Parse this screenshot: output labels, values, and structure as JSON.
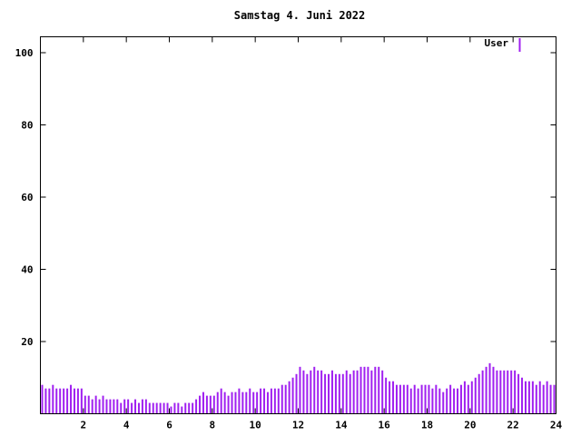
{
  "chart_data": {
    "type": "bar",
    "title": "Samstag 4. Juni 2022",
    "legend": "User",
    "series_color": "#a020f0",
    "axis_color": "#000000",
    "xlabel": "",
    "ylabel": "",
    "xlim": [
      0,
      24
    ],
    "ylim": [
      0,
      104
    ],
    "xticks": [
      2,
      4,
      6,
      8,
      10,
      12,
      14,
      16,
      18,
      20,
      22,
      24
    ],
    "yticks": [
      20,
      40,
      60,
      80,
      100
    ],
    "interval_minutes": 10,
    "values": [
      8,
      7,
      7,
      8,
      7,
      7,
      7,
      7,
      8,
      7,
      7,
      7,
      5,
      5,
      4,
      5,
      4,
      5,
      4,
      4,
      4,
      4,
      3,
      4,
      4,
      3,
      4,
      3,
      4,
      4,
      3,
      3,
      3,
      3,
      3,
      3,
      2,
      3,
      3,
      2,
      3,
      3,
      3,
      4,
      5,
      6,
      5,
      5,
      5,
      6,
      7,
      6,
      5,
      6,
      6,
      7,
      6,
      6,
      7,
      6,
      6,
      7,
      7,
      6,
      7,
      7,
      7,
      8,
      8,
      9,
      10,
      11,
      13,
      12,
      11,
      12,
      13,
      12,
      12,
      11,
      11,
      12,
      11,
      11,
      11,
      12,
      11,
      12,
      12,
      13,
      13,
      13,
      12,
      13,
      13,
      12,
      10,
      9,
      9,
      8,
      8,
      8,
      8,
      7,
      8,
      7,
      8,
      8,
      8,
      7,
      8,
      7,
      6,
      7,
      8,
      7,
      7,
      8,
      9,
      8,
      9,
      10,
      11,
      12,
      13,
      14,
      13,
      12,
      12,
      12,
      12,
      12,
      12,
      11,
      10,
      9,
      9,
      9,
      8,
      9,
      8,
      9,
      8,
      8
    ]
  }
}
